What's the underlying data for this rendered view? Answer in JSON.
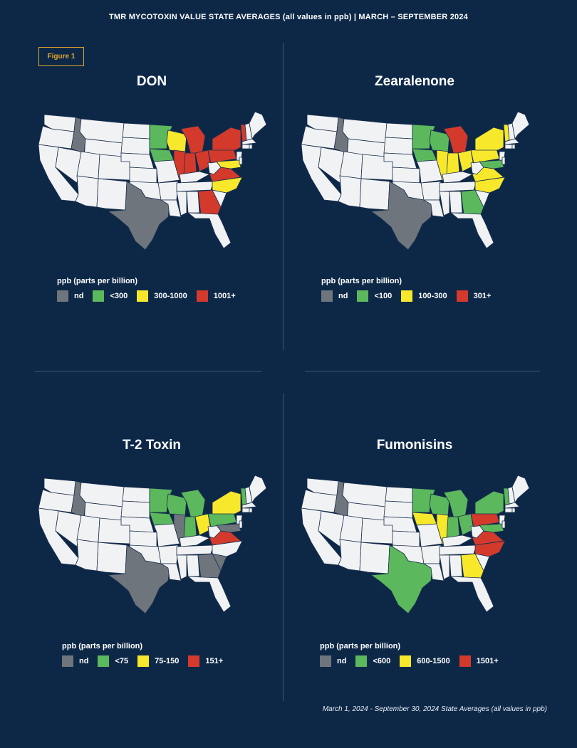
{
  "header": {
    "title": "TMR MYCOTOXIN VALUE STATE AVERAGES (all values in ppb) | MARCH – SEPTEMBER 2024"
  },
  "badge": {
    "label": "Figure 1"
  },
  "colors": {
    "nd": "#6f757c",
    "low": "#5cb85c",
    "mid": "#f7e82c",
    "high": "#d33a2c",
    "none": "#f1f2f4",
    "border": "#1a2f4e",
    "background": "#0d2847"
  },
  "panels": [
    {
      "title": "DON",
      "legend": {
        "title": "ppb (parts per billion)",
        "items": [
          {
            "level": "nd",
            "label": "nd"
          },
          {
            "level": "low",
            "label": "<300"
          },
          {
            "level": "mid",
            "label": "300-1000"
          },
          {
            "level": "high",
            "label": "1001+"
          }
        ]
      },
      "states": {
        "ID": "nd",
        "TX": "nd",
        "MN": "low",
        "IA": "low",
        "WI": "mid",
        "IL": "high",
        "IN": "high",
        "MI": "high",
        "OH": "high",
        "PA": "high",
        "NY": "high",
        "VT": "high",
        "MD": "mid",
        "VA": "high",
        "NC": "mid",
        "GA": "high"
      }
    },
    {
      "title": "Zearalenone",
      "legend": {
        "title": "ppb (parts per billion)",
        "items": [
          {
            "level": "nd",
            "label": "nd"
          },
          {
            "level": "low",
            "label": "<100"
          },
          {
            "level": "mid",
            "label": "100-300"
          },
          {
            "level": "high",
            "label": "301+"
          }
        ]
      },
      "states": {
        "ID": "nd",
        "TX": "nd",
        "MN": "low",
        "IA": "low",
        "WI": "low",
        "IL": "mid",
        "IN": "mid",
        "MI": "high",
        "OH": "mid",
        "PA": "mid",
        "NY": "mid",
        "VT": "mid",
        "MD": "low",
        "VA": "mid",
        "NC": "mid",
        "GA": "low"
      }
    },
    {
      "title": "T-2 Toxin",
      "legend": {
        "title": "ppb (parts per billion)",
        "items": [
          {
            "level": "nd",
            "label": "nd"
          },
          {
            "level": "low",
            "label": "<75"
          },
          {
            "level": "mid",
            "label": "75-150"
          },
          {
            "level": "high",
            "label": "151+"
          }
        ]
      },
      "states": {
        "ID": "nd",
        "TX": "nd",
        "MN": "low",
        "IA": "low",
        "WI": "low",
        "IL": "nd",
        "IN": "low",
        "MI": "low",
        "OH": "mid",
        "PA": "low",
        "NY": "mid",
        "VT": "low",
        "MD": "nd",
        "VA": "high",
        "SC": "nd",
        "GA": "nd"
      }
    },
    {
      "title": "Fumonisins",
      "legend": {
        "title": "ppb (parts per billion)",
        "items": [
          {
            "level": "nd",
            "label": "nd"
          },
          {
            "level": "low",
            "label": "<600"
          },
          {
            "level": "mid",
            "label": "600-1500"
          },
          {
            "level": "high",
            "label": "1501+"
          }
        ]
      },
      "states": {
        "ID": "nd",
        "TX": "low",
        "MN": "low",
        "IA": "mid",
        "WI": "low",
        "IL": "mid",
        "IN": "low",
        "MI": "low",
        "OH": "low",
        "PA": "high",
        "NY": "low",
        "VT": "low",
        "MD": "low",
        "VA": "high",
        "NC": "high",
        "GA": "mid"
      }
    }
  ],
  "footnote": "March 1, 2024 - September 30, 2024 State Averages (all values in ppb)"
}
